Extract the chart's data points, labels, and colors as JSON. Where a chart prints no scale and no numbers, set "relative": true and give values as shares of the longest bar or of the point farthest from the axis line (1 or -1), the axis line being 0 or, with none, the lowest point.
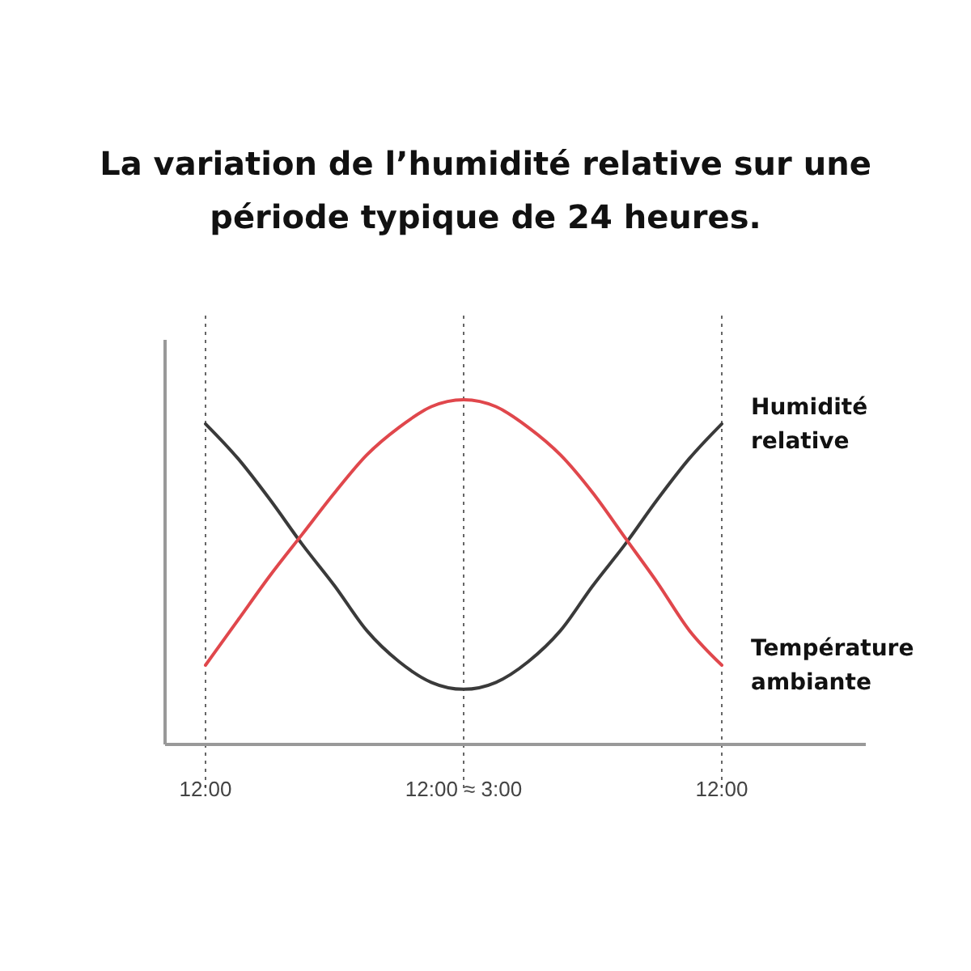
{
  "chart_data": {
    "type": "line",
    "title": "La variation de l’humidité relative sur une période typique de 24 heures.",
    "relative": true,
    "grid": "x",
    "marker": "none",
    "line_style": "solid",
    "categories": [
      "12:00",
      null,
      null,
      null,
      null,
      null,
      null,
      null,
      "12:00 ≈ 3:00",
      null,
      null,
      null,
      null,
      null,
      null,
      null,
      "12:00"
    ],
    "series": [
      {
        "name": "Humidité relative",
        "color": "#3a3a3a",
        "values": [
          0.93,
          0.83,
          0.71,
          0.58,
          0.46,
          0.33,
          0.24,
          0.18,
          0.16,
          0.18,
          0.24,
          0.33,
          0.46,
          0.58,
          0.71,
          0.83,
          0.93
        ]
      },
      {
        "name": "Température ambiante",
        "color": "#e0474c",
        "values": [
          0.23,
          0.36,
          0.49,
          0.61,
          0.73,
          0.84,
          0.92,
          0.98,
          1,
          0.98,
          0.92,
          0.84,
          0.73,
          0.6,
          0.47,
          0.33,
          0.23
        ]
      }
    ]
  }
}
